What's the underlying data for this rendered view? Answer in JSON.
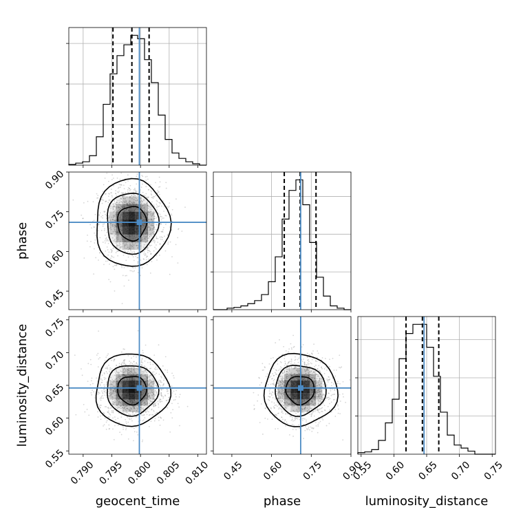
{
  "colors": {
    "truth": "#4c8bc4",
    "line": "#000000",
    "grid": "#b0b0b0",
    "density": "#000000"
  },
  "chart_data": {
    "type": "corner",
    "parameters": [
      "geocent_time",
      "phase",
      "luminosity_distance"
    ],
    "truth": {
      "geocent_time": 0.7998,
      "phase": 0.71,
      "luminosity_distance": 0.646
    },
    "axes": {
      "geocent_time": {
        "range": [
          0.7875,
          0.8115
        ],
        "ticks": [
          0.79,
          0.795,
          0.8,
          0.805,
          0.81
        ],
        "tick_labels": [
          "0.790",
          "0.795",
          "0.800",
          "0.805",
          "0.810"
        ]
      },
      "phase": {
        "range": [
          0.38,
          0.9
        ],
        "ticks": [
          0.45,
          0.6,
          0.75,
          0.9
        ],
        "tick_labels": [
          "0.45",
          "0.60",
          "0.75",
          "0.90"
        ]
      },
      "luminosity_distance": {
        "range": [
          0.545,
          0.755
        ],
        "ticks": [
          0.55,
          0.6,
          0.65,
          0.7,
          0.75
        ],
        "tick_labels": [
          "0.55",
          "0.60",
          "0.65",
          "0.70",
          "0.75"
        ]
      }
    },
    "histograms": [
      {
        "parameter": "geocent_time",
        "bin_range": [
          0.7875,
          0.8115
        ],
        "counts": [
          1,
          3,
          5,
          14,
          42,
          90,
          135,
          162,
          178,
          192,
          187,
          156,
          122,
          74,
          38,
          18,
          10,
          5,
          2,
          0
        ],
        "quantiles": [
          0.7952,
          0.7985,
          0.8015
        ]
      },
      {
        "parameter": "phase",
        "bin_range": [
          0.38,
          0.9
        ],
        "counts": [
          0,
          0,
          2,
          3,
          5,
          8,
          12,
          20,
          37,
          70,
          120,
          158,
          172,
          139,
          89,
          43,
          18,
          5,
          2,
          0
        ],
        "quantiles": [
          0.648,
          0.708,
          0.768
        ]
      },
      {
        "parameter": "luminosity_distance",
        "bin_range": [
          0.545,
          0.755
        ],
        "counts": [
          2,
          3,
          6,
          18,
          41,
          72,
          125,
          158,
          170,
          170,
          140,
          102,
          55,
          25,
          12,
          8,
          4,
          0,
          0,
          0
        ],
        "quantiles": [
          0.6185,
          0.6435,
          0.6685
        ]
      }
    ],
    "pairs": [
      {
        "x": "geocent_time",
        "y": "phase",
        "mean": [
          0.7985,
          0.707
        ],
        "sigma": [
          0.0028,
          0.072
        ],
        "contour_levels_sigma": [
          0.9,
          1.6,
          2.3
        ]
      },
      {
        "x": "geocent_time",
        "y": "luminosity_distance",
        "mean": [
          0.7985,
          0.643
        ],
        "sigma": [
          0.0028,
          0.024
        ],
        "contour_levels_sigma": [
          0.9,
          1.6,
          2.3
        ]
      },
      {
        "x": "phase",
        "y": "luminosity_distance",
        "mean": [
          0.708,
          0.643
        ],
        "sigma": [
          0.06,
          0.024
        ],
        "contour_levels_sigma": [
          0.9,
          1.6,
          2.3
        ]
      }
    ],
    "grid": true
  }
}
